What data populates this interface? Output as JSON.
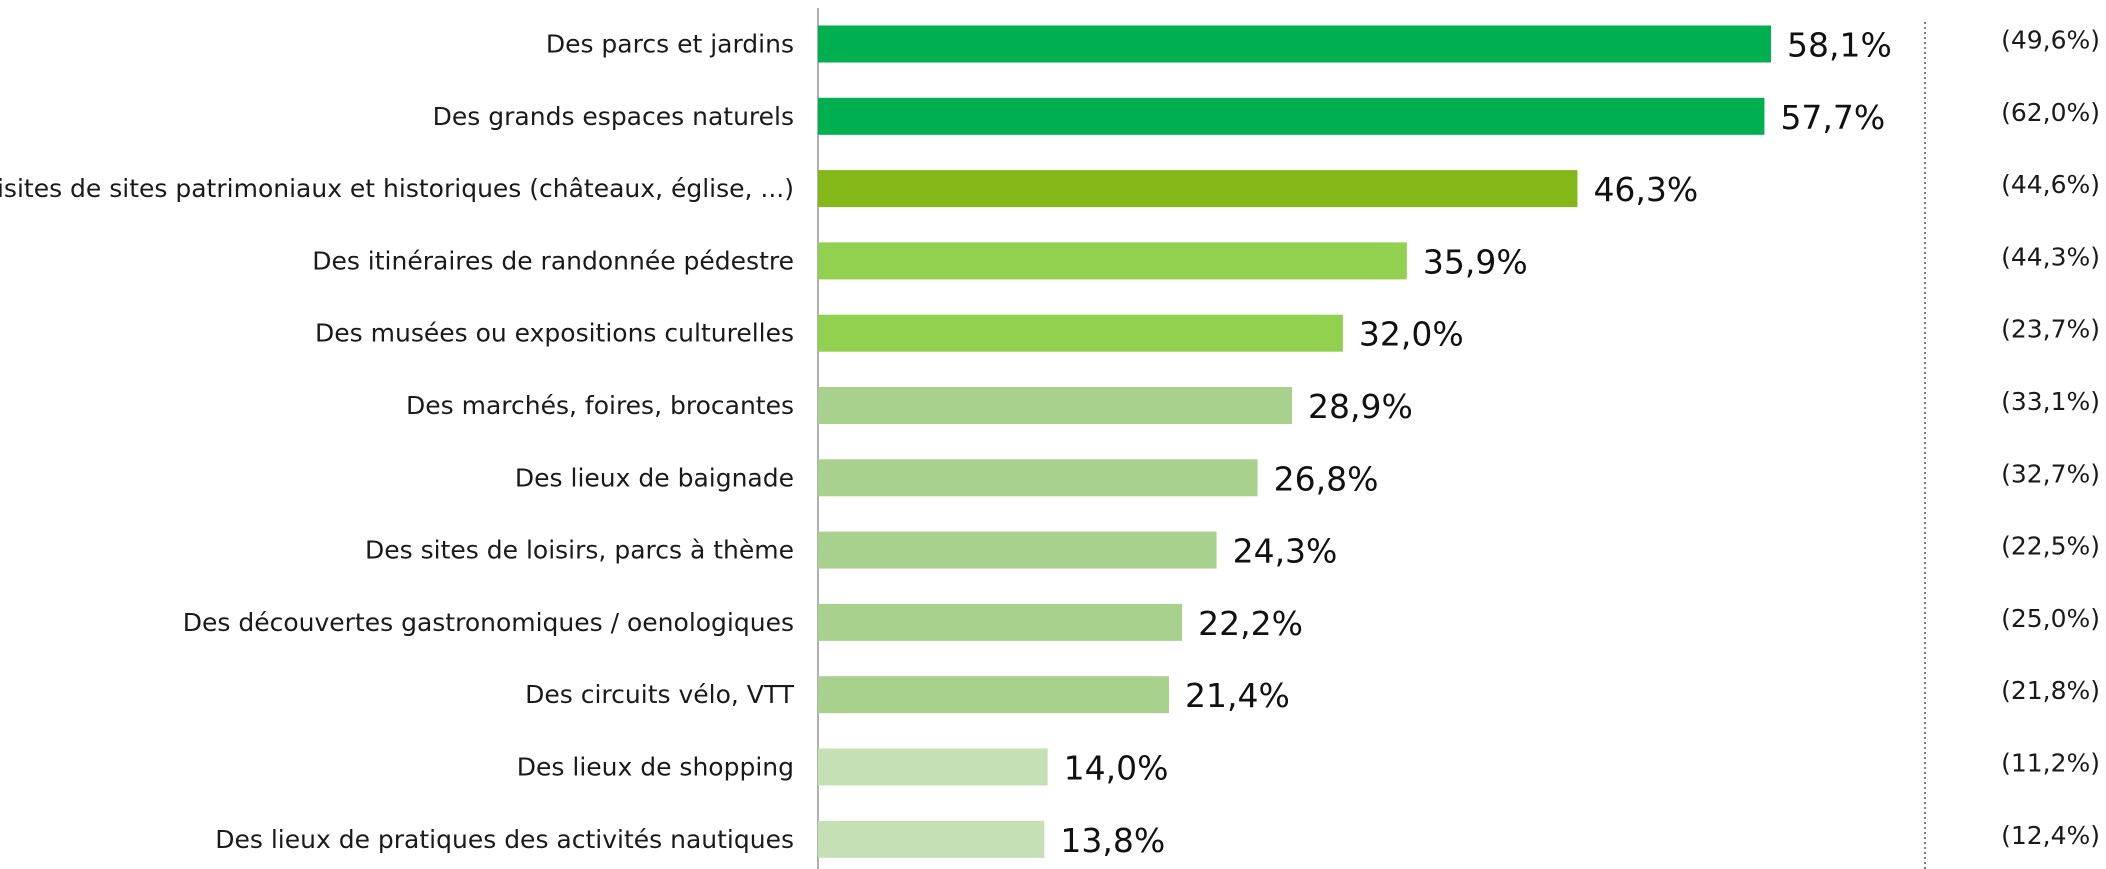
{
  "chart_data": {
    "type": "bar",
    "orientation": "horizontal",
    "categories": [
      "Des parcs et jardins",
      "Des grands espaces naturels",
      "Des visites de sites patrimoniaux et historiques (châteaux, église, ...)",
      "Des itinéraires de randonnée pédestre",
      "Des musées ou expositions culturelles",
      "Des marchés, foires, brocantes",
      "Des lieux de baignade",
      "Des sites de loisirs, parcs à thème",
      "Des découvertes gastronomiques / oenologiques",
      "Des circuits vélo, VTT",
      "Des lieux de shopping",
      "Des lieux de pratiques des activités nautiques"
    ],
    "values": [
      58.1,
      57.7,
      46.3,
      35.9,
      32.0,
      28.9,
      26.8,
      24.3,
      22.2,
      21.4,
      14.0,
      13.8
    ],
    "value_labels": [
      "58,1%",
      "57,7%",
      "46,3%",
      "35,9%",
      "32,0%",
      "28,9%",
      "26,8%",
      "24,3%",
      "22,2%",
      "21,4%",
      "14,0%",
      "13,8%"
    ],
    "comparison_labels": [
      "(49,6%)",
      "(62,0%)",
      "(44,6%)",
      "(44,3%)",
      "(23,7%)",
      "(33,1%)",
      "(32,7%)",
      "(22,5%)",
      "(25,0%)",
      "(21,8%)",
      "(11,2%)",
      "(12,4%)"
    ],
    "colors": [
      "#00af50",
      "#00af50",
      "#84b819",
      "#92d050",
      "#92d050",
      "#a9d18e",
      "#a9d18e",
      "#a9d18e",
      "#a9d18e",
      "#a9d18e",
      "#c5e0b4",
      "#c5e0b4"
    ],
    "xlim": [
      0,
      58.1
    ],
    "title": "",
    "xlabel": "",
    "ylabel": "",
    "grid": false,
    "legend": "none"
  }
}
